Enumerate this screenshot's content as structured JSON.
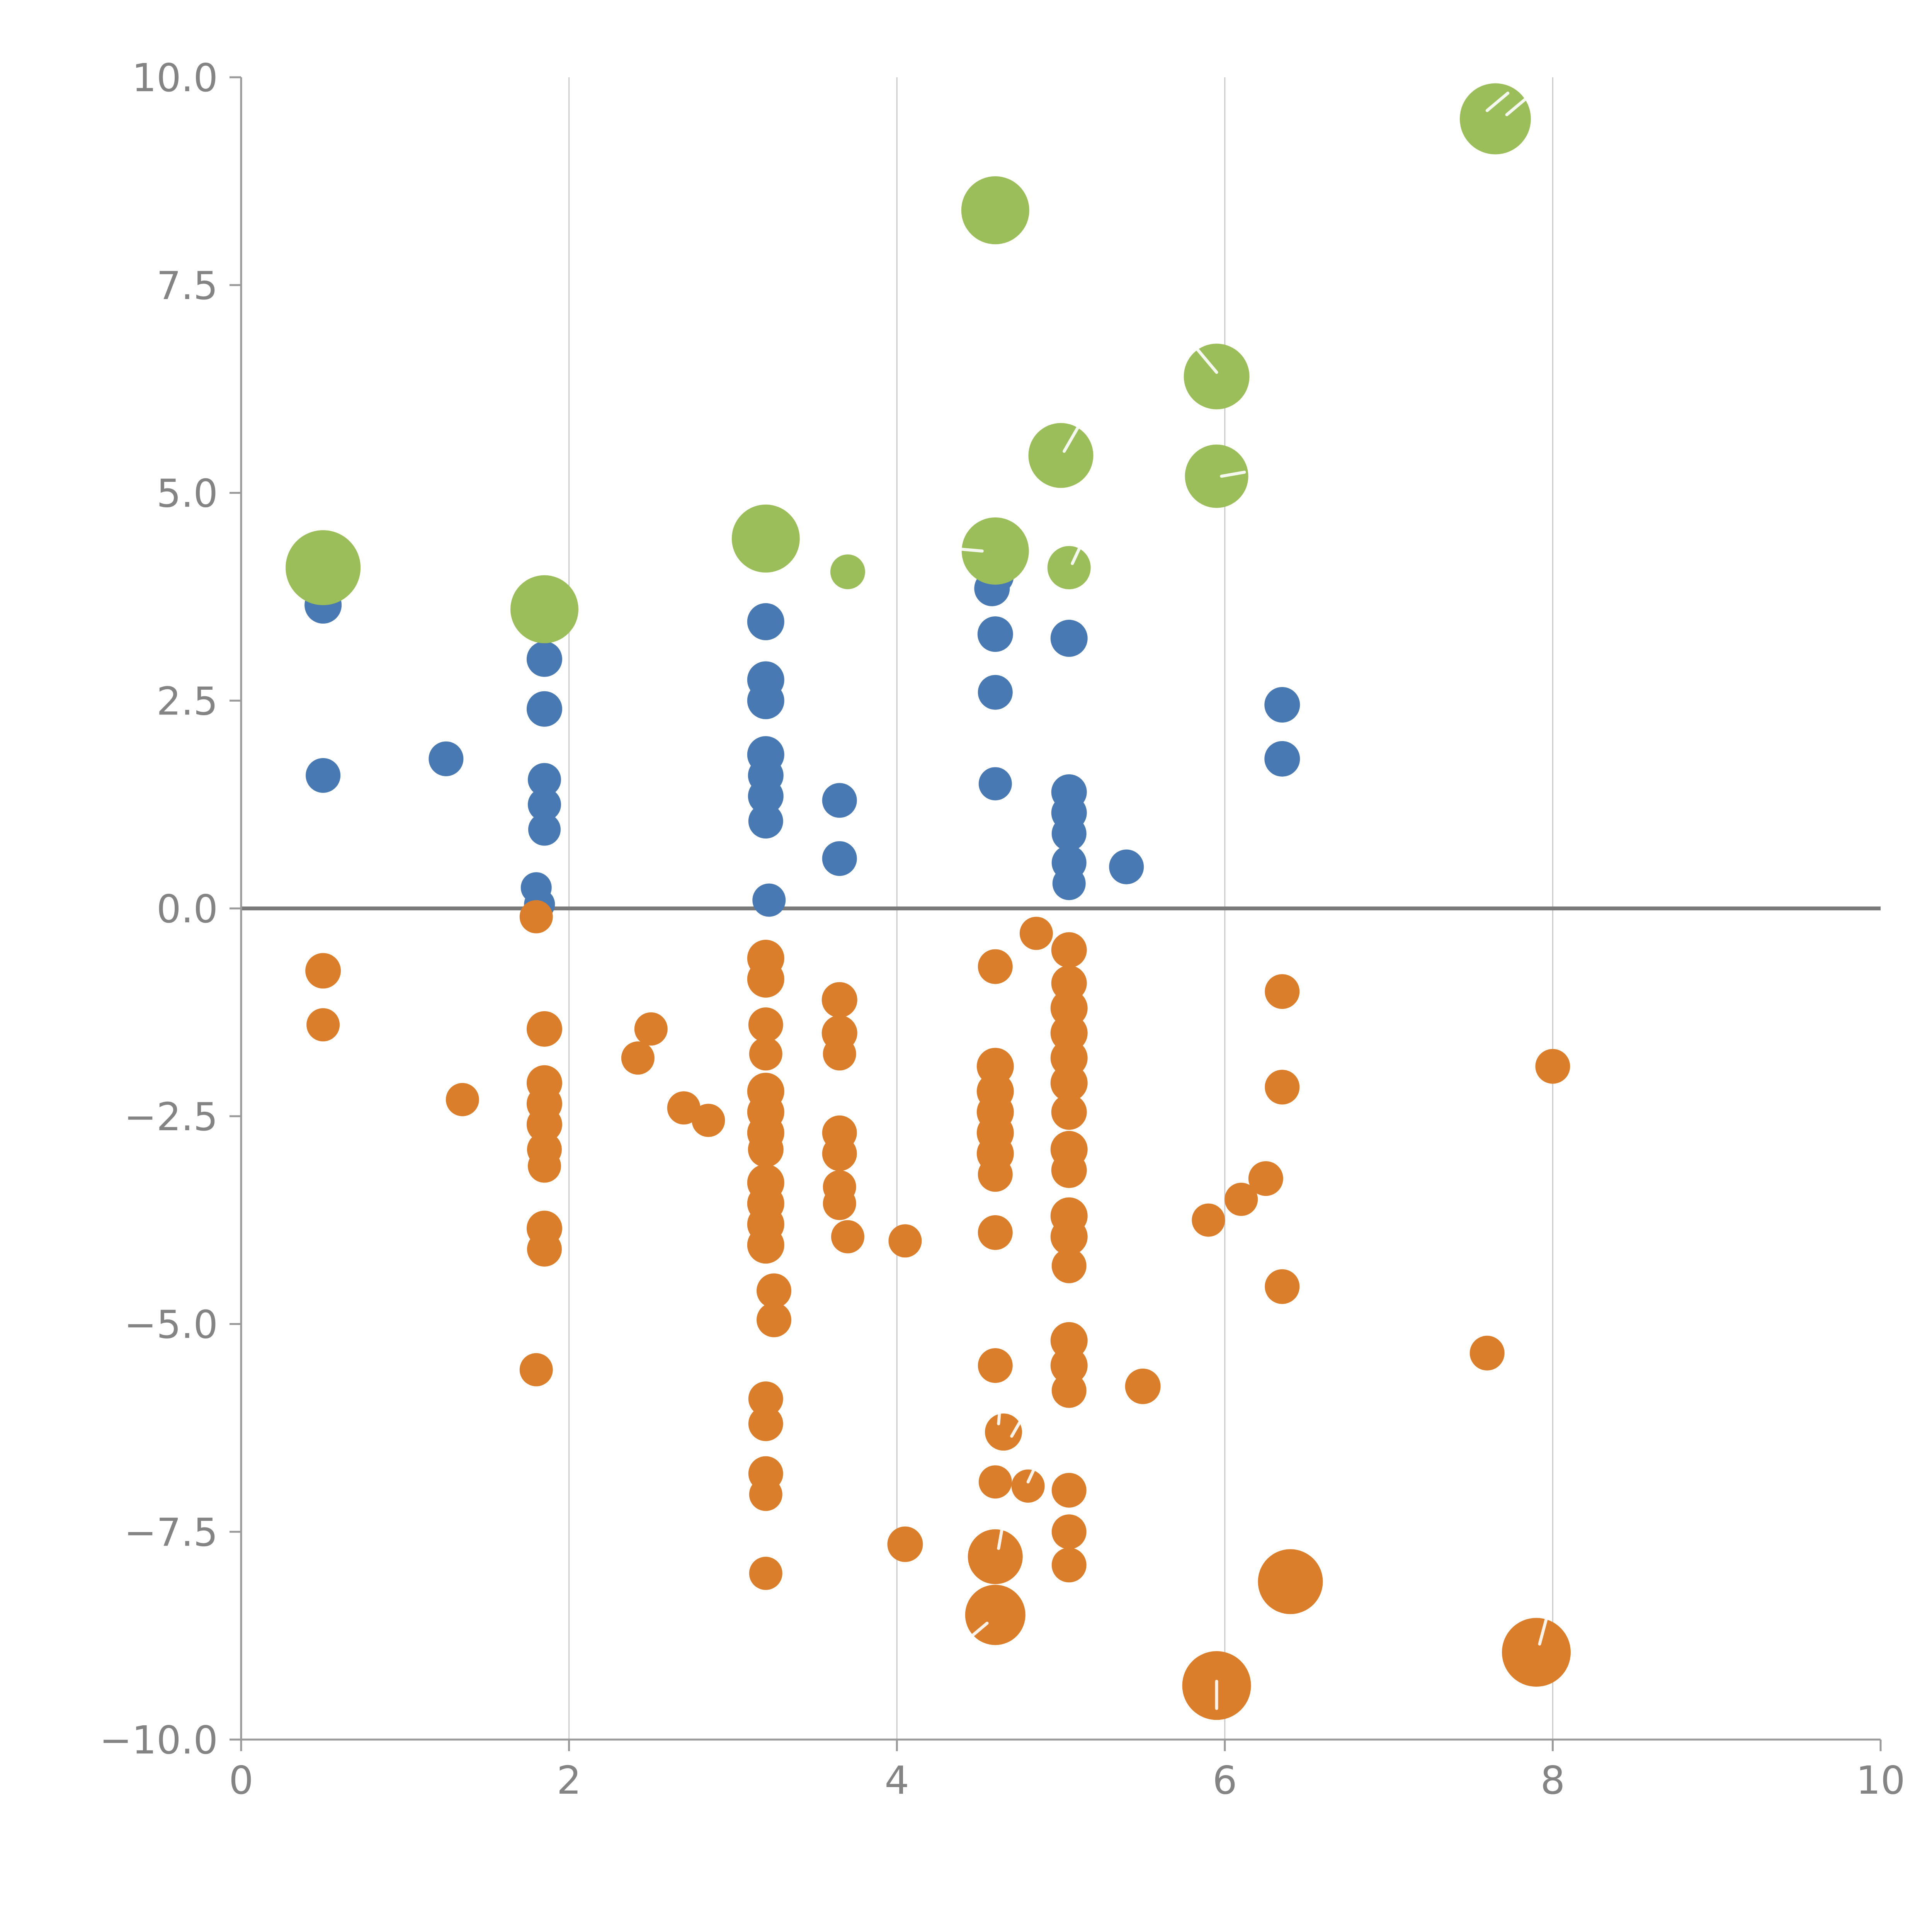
{
  "chart_data": {
    "type": "scatter",
    "title": "",
    "xlabel": "",
    "ylabel": "",
    "xlim": [
      0,
      10
    ],
    "ylim": [
      -10,
      10
    ],
    "x_ticks": [
      0,
      2,
      4,
      6,
      8,
      10
    ],
    "x_tick_labels": [
      "0",
      "2",
      "4",
      "6",
      "8",
      "10"
    ],
    "y_ticks": [
      -10.0,
      -7.5,
      -5.0,
      -2.5,
      0.0,
      2.5,
      5.0,
      7.5,
      10.0
    ],
    "y_tick_labels": [
      "−10.0",
      "−7.5",
      "−5.0",
      "−2.5",
      "0.0",
      "2.5",
      "5.0",
      "7.5",
      "10.0"
    ],
    "grid_x": [
      2,
      4,
      6,
      8
    ],
    "zero_line_y": 0,
    "legend": "none",
    "style": {
      "blue": "#4879B2",
      "green": "#9BBE5A",
      "orange": "#DB7E2C",
      "grid_color": "#c9c9c9",
      "spine_color": "#9a9a9a",
      "zero_line_color": "#7a7a7a",
      "tick_label_color": "#848484",
      "background": "#ffffff"
    },
    "series": [
      {
        "name": "blue",
        "color_key": "blue",
        "points": [
          [
            0.5,
            3.65,
            48
          ],
          [
            0.5,
            1.6,
            45
          ],
          [
            1.25,
            1.8,
            45
          ],
          [
            1.85,
            3.55,
            45
          ],
          [
            1.85,
            3.0,
            46
          ],
          [
            1.85,
            2.4,
            46
          ],
          [
            1.85,
            1.55,
            43
          ],
          [
            1.85,
            1.25,
            43
          ],
          [
            1.85,
            0.95,
            42
          ],
          [
            1.8,
            0.25,
            40
          ],
          [
            1.82,
            0.05,
            40
          ],
          [
            3.2,
            3.45,
            48
          ],
          [
            3.2,
            2.75,
            48
          ],
          [
            3.2,
            2.5,
            48
          ],
          [
            3.2,
            1.85,
            48
          ],
          [
            3.2,
            1.6,
            46
          ],
          [
            3.2,
            1.35,
            46
          ],
          [
            3.2,
            1.05,
            45
          ],
          [
            3.22,
            0.1,
            43
          ],
          [
            3.65,
            1.3,
            45
          ],
          [
            3.65,
            0.6,
            45
          ],
          [
            4.6,
            4.0,
            48
          ],
          [
            4.58,
            3.85,
            46
          ],
          [
            4.6,
            3.3,
            46
          ],
          [
            4.6,
            2.6,
            45
          ],
          [
            4.6,
            1.5,
            43
          ],
          [
            5.05,
            3.25,
            48
          ],
          [
            5.05,
            1.4,
            46
          ],
          [
            5.05,
            1.15,
            46
          ],
          [
            5.05,
            0.9,
            45
          ],
          [
            5.05,
            0.55,
            45
          ],
          [
            5.05,
            0.3,
            43
          ],
          [
            5.4,
            0.5,
            45
          ],
          [
            6.35,
            2.45,
            46
          ],
          [
            6.35,
            1.8,
            46
          ]
        ]
      },
      {
        "name": "green",
        "color_key": "green",
        "points": [
          [
            0.5,
            4.1,
            97
          ],
          [
            1.85,
            3.6,
            88
          ],
          [
            3.2,
            4.45,
            88
          ],
          [
            3.7,
            4.05,
            45
          ],
          [
            4.6,
            8.4,
            88
          ],
          [
            4.6,
            4.3,
            87
          ],
          [
            5.0,
            5.45,
            84
          ],
          [
            5.05,
            4.1,
            56
          ],
          [
            5.95,
            6.4,
            85
          ],
          [
            5.95,
            5.2,
            82
          ],
          [
            7.65,
            9.5,
            92
          ]
        ]
      },
      {
        "name": "orange",
        "color_key": "orange",
        "points": [
          [
            0.5,
            -0.75,
            46
          ],
          [
            0.5,
            -1.4,
            43
          ],
          [
            1.35,
            -2.3,
            43
          ],
          [
            1.8,
            -0.1,
            43
          ],
          [
            1.85,
            -1.45,
            46
          ],
          [
            1.85,
            -2.1,
            46
          ],
          [
            1.85,
            -2.35,
            46
          ],
          [
            1.85,
            -2.6,
            46
          ],
          [
            1.85,
            -2.9,
            45
          ],
          [
            1.85,
            -3.1,
            43
          ],
          [
            1.85,
            -3.85,
            46
          ],
          [
            1.85,
            -4.1,
            45
          ],
          [
            1.8,
            -5.55,
            43
          ],
          [
            2.5,
            -1.45,
            43
          ],
          [
            2.42,
            -1.8,
            43
          ],
          [
            2.7,
            -2.4,
            43
          ],
          [
            2.85,
            -2.55,
            43
          ],
          [
            3.2,
            -0.6,
            48
          ],
          [
            3.2,
            -0.85,
            48
          ],
          [
            3.2,
            -1.4,
            45
          ],
          [
            3.2,
            -1.75,
            43
          ],
          [
            3.2,
            -2.2,
            48
          ],
          [
            3.2,
            -2.45,
            48
          ],
          [
            3.2,
            -2.7,
            48
          ],
          [
            3.2,
            -2.9,
            46
          ],
          [
            3.2,
            -3.3,
            48
          ],
          [
            3.2,
            -3.55,
            48
          ],
          [
            3.2,
            -3.8,
            48
          ],
          [
            3.2,
            -4.05,
            48
          ],
          [
            3.25,
            -4.6,
            45
          ],
          [
            3.25,
            -4.95,
            45
          ],
          [
            3.2,
            -5.9,
            45
          ],
          [
            3.2,
            -6.2,
            45
          ],
          [
            3.2,
            -6.8,
            45
          ],
          [
            3.2,
            -7.05,
            43
          ],
          [
            3.2,
            -8.0,
            43
          ],
          [
            3.65,
            -1.1,
            46
          ],
          [
            3.65,
            -1.5,
            46
          ],
          [
            3.65,
            -1.75,
            43
          ],
          [
            3.65,
            -2.7,
            45
          ],
          [
            3.65,
            -2.95,
            45
          ],
          [
            3.65,
            -3.35,
            43
          ],
          [
            3.65,
            -3.55,
            43
          ],
          [
            3.7,
            -3.95,
            43
          ],
          [
            4.05,
            -4.0,
            43
          ],
          [
            4.05,
            -7.65,
            46
          ],
          [
            4.6,
            -0.7,
            45
          ],
          [
            4.6,
            -1.9,
            48
          ],
          [
            4.6,
            -2.2,
            48
          ],
          [
            4.6,
            -2.45,
            48
          ],
          [
            4.6,
            -2.7,
            48
          ],
          [
            4.6,
            -2.95,
            48
          ],
          [
            4.6,
            -3.2,
            45
          ],
          [
            4.6,
            -3.9,
            45
          ],
          [
            4.6,
            -5.5,
            45
          ],
          [
            4.65,
            -6.3,
            48
          ],
          [
            4.6,
            -6.9,
            43
          ],
          [
            4.8,
            -6.95,
            43
          ],
          [
            4.85,
            -0.3,
            43
          ],
          [
            4.6,
            -7.8,
            71
          ],
          [
            4.6,
            -8.5,
            78
          ],
          [
            5.05,
            -0.5,
            46
          ],
          [
            5.05,
            -0.9,
            46
          ],
          [
            5.05,
            -1.2,
            48
          ],
          [
            5.05,
            -1.5,
            48
          ],
          [
            5.05,
            -1.8,
            48
          ],
          [
            5.05,
            -2.1,
            48
          ],
          [
            5.05,
            -2.45,
            46
          ],
          [
            5.05,
            -2.9,
            48
          ],
          [
            5.05,
            -3.15,
            46
          ],
          [
            5.05,
            -3.7,
            48
          ],
          [
            5.05,
            -3.95,
            48
          ],
          [
            5.05,
            -4.3,
            45
          ],
          [
            5.05,
            -5.2,
            48
          ],
          [
            5.05,
            -5.5,
            48
          ],
          [
            5.05,
            -5.8,
            45
          ],
          [
            5.05,
            -7.0,
            45
          ],
          [
            5.05,
            -7.5,
            45
          ],
          [
            5.05,
            -7.9,
            45
          ],
          [
            5.5,
            -5.75,
            46
          ],
          [
            5.9,
            -3.75,
            43
          ],
          [
            5.95,
            -9.35,
            89
          ],
          [
            6.1,
            -3.5,
            43
          ],
          [
            6.25,
            -3.25,
            45
          ],
          [
            6.35,
            -1.0,
            45
          ],
          [
            6.35,
            -2.15,
            45
          ],
          [
            6.35,
            -4.55,
            45
          ],
          [
            6.4,
            -8.1,
            84
          ],
          [
            7.6,
            -5.35,
            45
          ],
          [
            7.9,
            -8.95,
            89
          ],
          [
            8.0,
            -1.9,
            45
          ]
        ]
      }
    ],
    "white_marks": [
      [
        7.6,
        9.6,
        40,
        70
      ],
      [
        7.72,
        9.55,
        40,
        70
      ],
      [
        5.95,
        6.45,
        130,
        80
      ],
      [
        5.98,
        5.2,
        10,
        60
      ],
      [
        5.02,
        5.5,
        60,
        70
      ],
      [
        4.52,
        4.3,
        175,
        60
      ],
      [
        5.07,
        4.15,
        65,
        45
      ],
      [
        4.62,
        -6.2,
        85,
        60
      ],
      [
        4.7,
        -6.35,
        60,
        55
      ],
      [
        4.8,
        -6.9,
        65,
        55
      ],
      [
        4.62,
        -7.7,
        80,
        60
      ],
      [
        4.55,
        -8.6,
        220,
        60
      ],
      [
        5.95,
        -9.3,
        270,
        70
      ],
      [
        7.92,
        -8.85,
        75,
        70
      ]
    ]
  }
}
